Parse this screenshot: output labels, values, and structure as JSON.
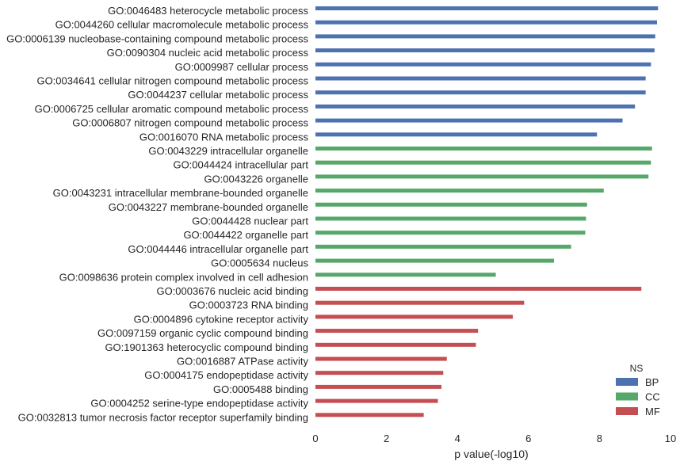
{
  "chart_data": {
    "type": "bar",
    "orientation": "horizontal",
    "xlabel": "p value(-log10)",
    "xlim": [
      0,
      10
    ],
    "xticks": [
      0,
      2,
      4,
      6,
      8,
      10
    ],
    "grid": false,
    "legend": {
      "title": "NS",
      "placement": "bottom-right",
      "entries": [
        {
          "name": "BP",
          "color": "#4c72b0"
        },
        {
          "name": "CC",
          "color": "#55a868"
        },
        {
          "name": "MF",
          "color": "#c44e52"
        }
      ]
    },
    "bars": [
      {
        "label": "GO:0046483 heterocycle metabolic process",
        "value": 9.65,
        "ns": "BP"
      },
      {
        "label": "GO:0044260 cellular macromolecule metabolic process",
        "value": 9.62,
        "ns": "BP"
      },
      {
        "label": "GO:0006139 nucleobase-containing compound metabolic process",
        "value": 9.57,
        "ns": "BP"
      },
      {
        "label": "GO:0090304 nucleic acid metabolic process",
        "value": 9.55,
        "ns": "BP"
      },
      {
        "label": "GO:0009987 cellular process",
        "value": 9.45,
        "ns": "BP"
      },
      {
        "label": "GO:0034641 cellular nitrogen compound metabolic process",
        "value": 9.3,
        "ns": "BP"
      },
      {
        "label": "GO:0044237 cellular metabolic process",
        "value": 9.3,
        "ns": "BP"
      },
      {
        "label": "GO:0006725 cellular aromatic compound metabolic process",
        "value": 9.0,
        "ns": "BP"
      },
      {
        "label": "GO:0006807 nitrogen compound metabolic process",
        "value": 8.65,
        "ns": "BP"
      },
      {
        "label": "GO:0016070 RNA metabolic process",
        "value": 7.93,
        "ns": "BP"
      },
      {
        "label": "GO:0043229 intracellular organelle",
        "value": 9.48,
        "ns": "CC"
      },
      {
        "label": "GO:0044424 intracellular part",
        "value": 9.45,
        "ns": "CC"
      },
      {
        "label": "GO:0043226 organelle",
        "value": 9.38,
        "ns": "CC"
      },
      {
        "label": "GO:0043231 intracellular membrane-bounded organelle",
        "value": 8.12,
        "ns": "CC"
      },
      {
        "label": "GO:0043227 membrane-bounded organelle",
        "value": 7.65,
        "ns": "CC"
      },
      {
        "label": "GO:0044428 nuclear part",
        "value": 7.62,
        "ns": "CC"
      },
      {
        "label": "GO:0044422 organelle part",
        "value": 7.6,
        "ns": "CC"
      },
      {
        "label": "GO:0044446 intracellular organelle part",
        "value": 7.2,
        "ns": "CC"
      },
      {
        "label": "GO:0005634 nucleus",
        "value": 6.72,
        "ns": "CC"
      },
      {
        "label": "GO:0098636 protein complex involved in cell adhesion",
        "value": 5.08,
        "ns": "CC"
      },
      {
        "label": "GO:0003676 nucleic acid binding",
        "value": 9.18,
        "ns": "MF"
      },
      {
        "label": "GO:0003723 RNA binding",
        "value": 5.88,
        "ns": "MF"
      },
      {
        "label": "GO:0004896 cytokine receptor activity",
        "value": 5.56,
        "ns": "MF"
      },
      {
        "label": "GO:0097159 organic cyclic compound binding",
        "value": 4.58,
        "ns": "MF"
      },
      {
        "label": "GO:1901363 heterocyclic compound binding",
        "value": 4.52,
        "ns": "MF"
      },
      {
        "label": "GO:0016887 ATPase activity",
        "value": 3.7,
        "ns": "MF"
      },
      {
        "label": "GO:0004175 endopeptidase activity",
        "value": 3.6,
        "ns": "MF"
      },
      {
        "label": "GO:0005488 binding",
        "value": 3.55,
        "ns": "MF"
      },
      {
        "label": "GO:0004252 serine-type endopeptidase activity",
        "value": 3.45,
        "ns": "MF"
      },
      {
        "label": "GO:0032813 tumor necrosis factor receptor superfamily binding",
        "value": 3.05,
        "ns": "MF"
      }
    ]
  }
}
